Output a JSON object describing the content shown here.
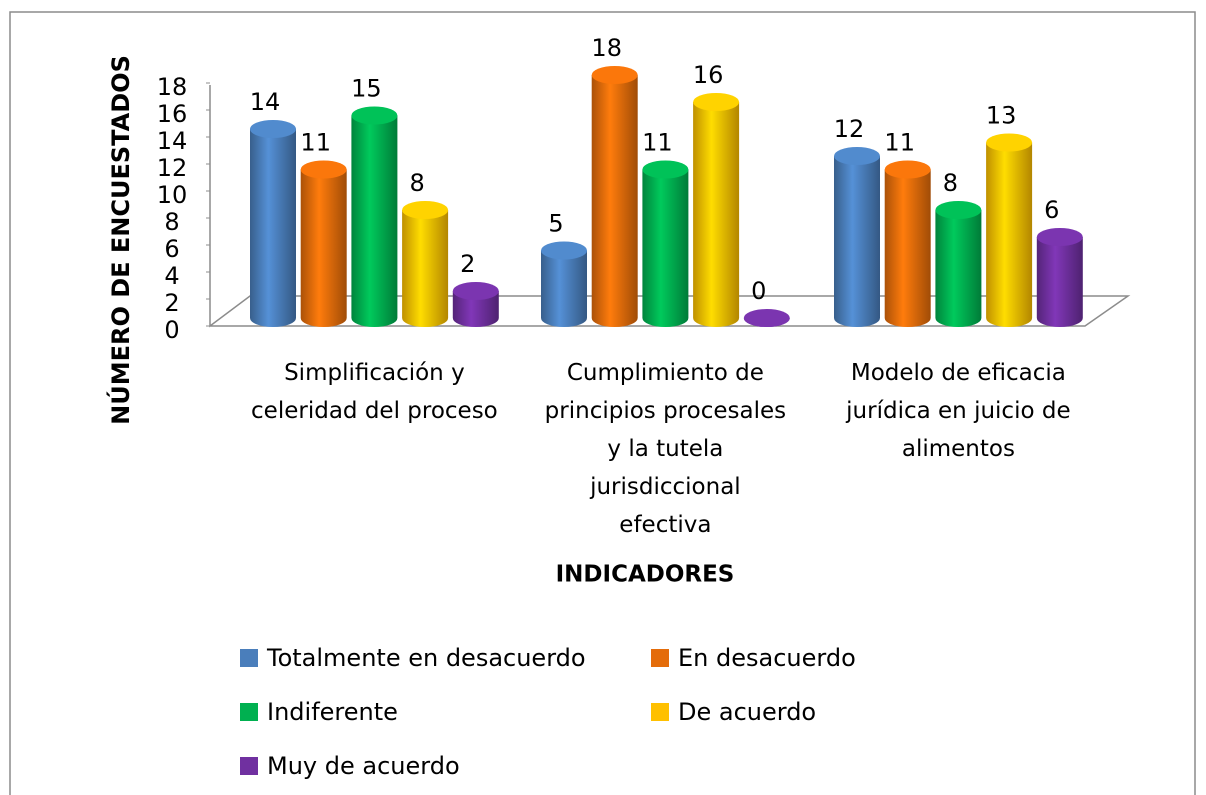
{
  "chart_data": {
    "type": "bar3d",
    "x_label": "INDICADORES",
    "y_label": "NÚMERO DE ENCUESTADOS",
    "categories": [
      "Simplificación y celeridad del proceso",
      "Cumplimiento de principios procesales y la tutela jurisdiccional efectiva",
      "Modelo de eficacia jurídica en juicio de alimentos"
    ],
    "series": [
      {
        "name": "Totalmente en desacuerdo",
        "color": "#4a7ebb",
        "values": [
          14,
          5,
          12
        ]
      },
      {
        "name": "En desacuerdo",
        "color": "#e46c0a",
        "values": [
          11,
          18,
          11
        ]
      },
      {
        "name": "Indiferente",
        "color": "#00b050",
        "values": [
          15,
          11,
          8
        ]
      },
      {
        "name": "De acuerdo",
        "color": "#ffc000",
        "values": [
          8,
          16,
          13
        ]
      },
      {
        "name": "Muy de acuerdo",
        "color": "#7030a0",
        "values": [
          2,
          0,
          6
        ]
      }
    ],
    "ylim": [
      0,
      18
    ],
    "yticks": [
      0,
      2,
      4,
      6,
      8,
      10,
      12,
      14,
      16,
      18
    ]
  }
}
